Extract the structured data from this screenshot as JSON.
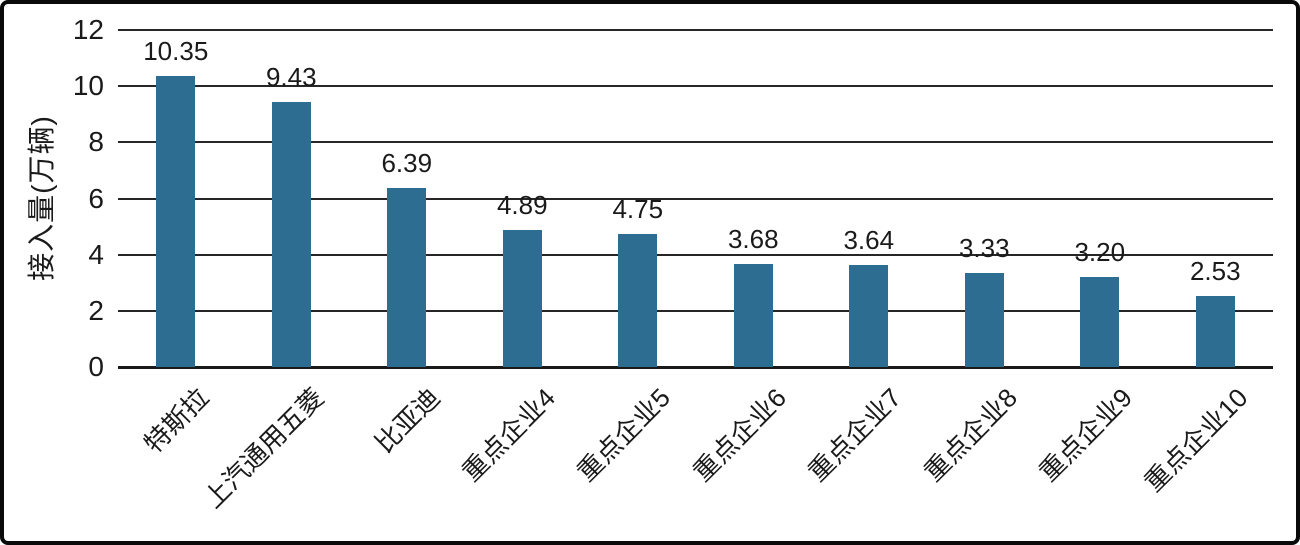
{
  "frame": {
    "background": "#ffffff",
    "border_color": "#0a0a0a"
  },
  "chart_data": {
    "type": "bar",
    "title": "",
    "ylabel": "接入量(万辆)",
    "xlabel": "",
    "categories": [
      "特斯拉",
      "上汽通用五菱",
      "比亚迪",
      "重点企业4",
      "重点企业5",
      "重点企业6",
      "重点企业7",
      "重点企业8",
      "重点企业9",
      "重点企业10"
    ],
    "values": [
      10.35,
      9.43,
      6.39,
      4.89,
      4.75,
      3.68,
      3.64,
      3.33,
      3.2,
      2.53
    ],
    "value_labels": [
      "10.35",
      "9.43",
      "6.39",
      "4.89",
      "4.75",
      "3.68",
      "3.64",
      "3.33",
      "3.20",
      "2.53"
    ],
    "ylim": [
      0,
      12
    ],
    "yticks": [
      0,
      2,
      4,
      6,
      8,
      10,
      12
    ],
    "grid": true,
    "legend": "none",
    "bar_color": "#2D6D91",
    "gridline_color": "#262626",
    "axis_color": "#1a1a1a",
    "text_color": "#1a1a1a"
  }
}
